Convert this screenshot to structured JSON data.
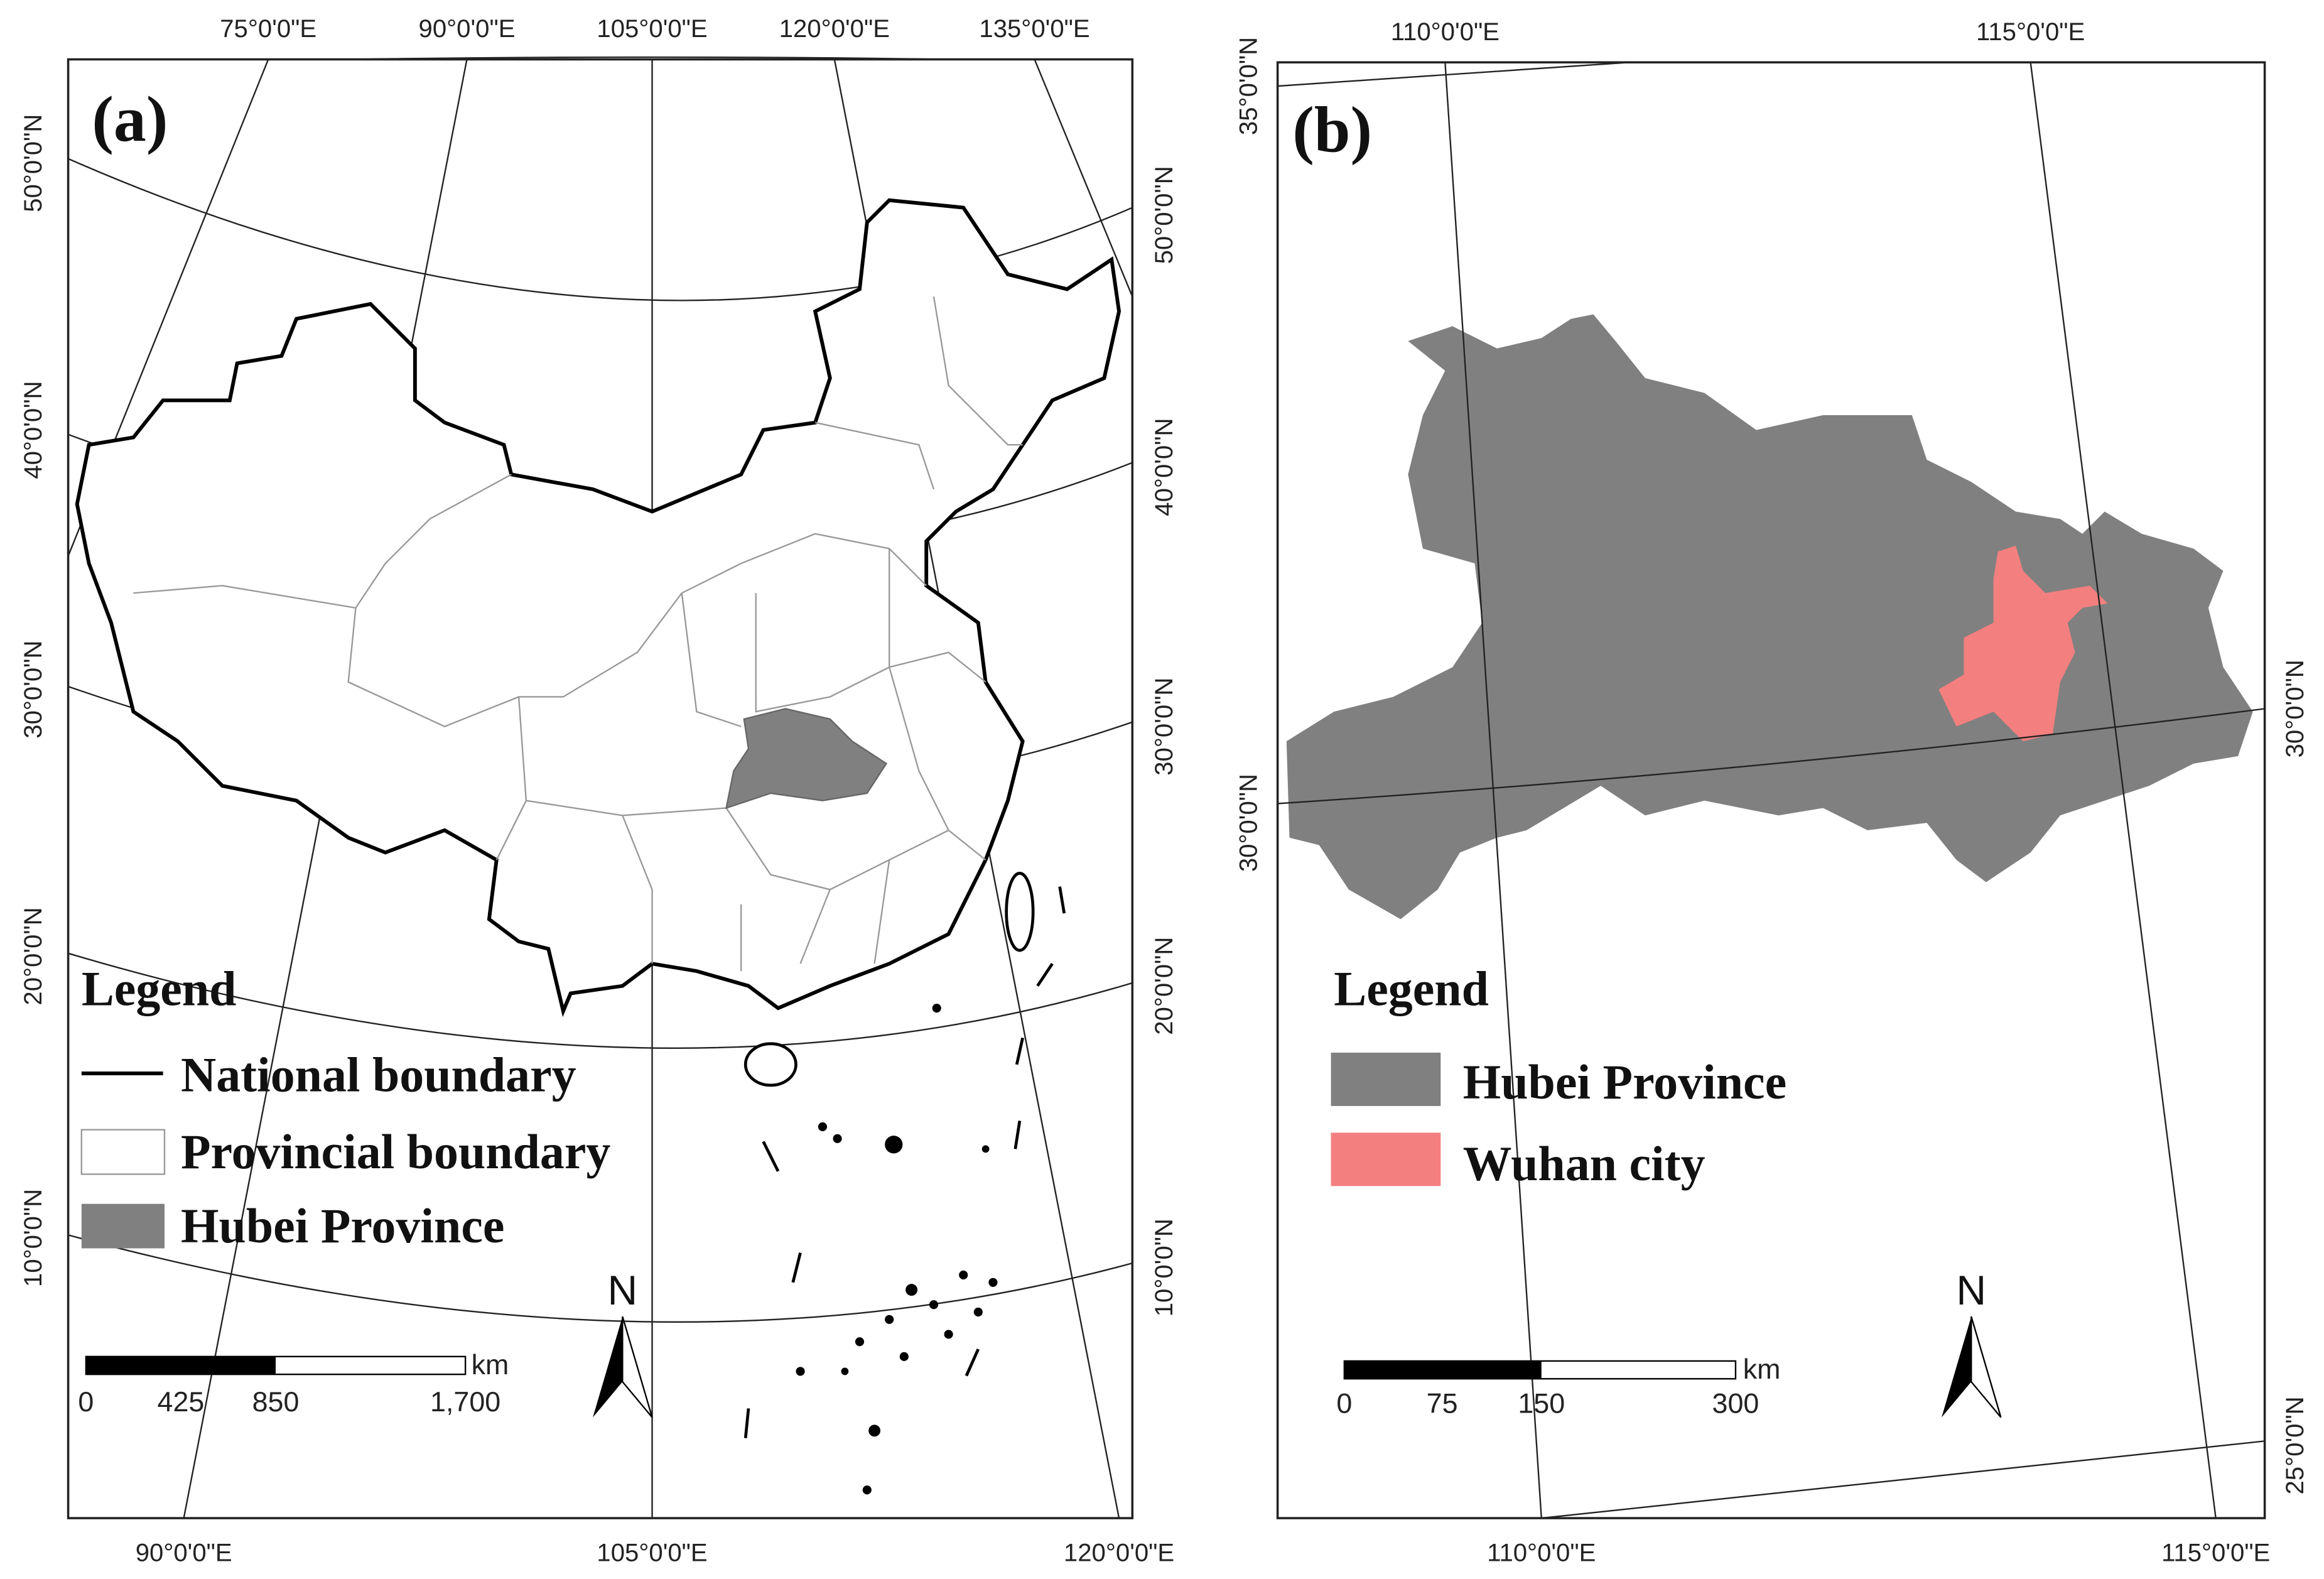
{
  "panel_a": {
    "label": "(a)",
    "top_labels": [
      "75°0'0\"E",
      "90°0'0\"E",
      "105°0'0\"E",
      "120°0'0\"E",
      "135°0'0\"E"
    ],
    "bottom_labels": [
      "90°0'0\"E",
      "105°0'0\"E",
      "120°0'0\"E"
    ],
    "left_labels": [
      "50°0'0\"N",
      "40°0'0\"N",
      "30°0'0\"N",
      "20°0'0\"N",
      "10°0'0\"N"
    ],
    "right_labels": [
      "50°0'0\"N",
      "40°0'0\"N",
      "30°0'0\"N",
      "20°0'0\"N",
      "10°0'0\"N"
    ],
    "legend": {
      "title": "Legend",
      "items": [
        "National boundary",
        "Provincial boundary",
        "Hubei Province"
      ]
    },
    "scale": {
      "ticks": [
        "0",
        "425",
        "850",
        "1,700"
      ],
      "unit": "km"
    },
    "north": "N"
  },
  "panel_b": {
    "label": "(b)",
    "top_labels": [
      "110°0'0\"E",
      "115°0'0\"E"
    ],
    "bottom_labels": [
      "110°0'0\"E",
      "115°0'0\"E"
    ],
    "left_labels": [
      "35°0'0\"N",
      "30°0'0\"N"
    ],
    "right_labels": [
      "30°0'0\"N",
      "25°0'0\"N"
    ],
    "legend": {
      "title": "Legend",
      "items": [
        "Hubei Province",
        "Wuhan city"
      ]
    },
    "scale": {
      "ticks": [
        "0",
        "75",
        "150",
        "300"
      ],
      "unit": "km"
    },
    "north": "N"
  }
}
